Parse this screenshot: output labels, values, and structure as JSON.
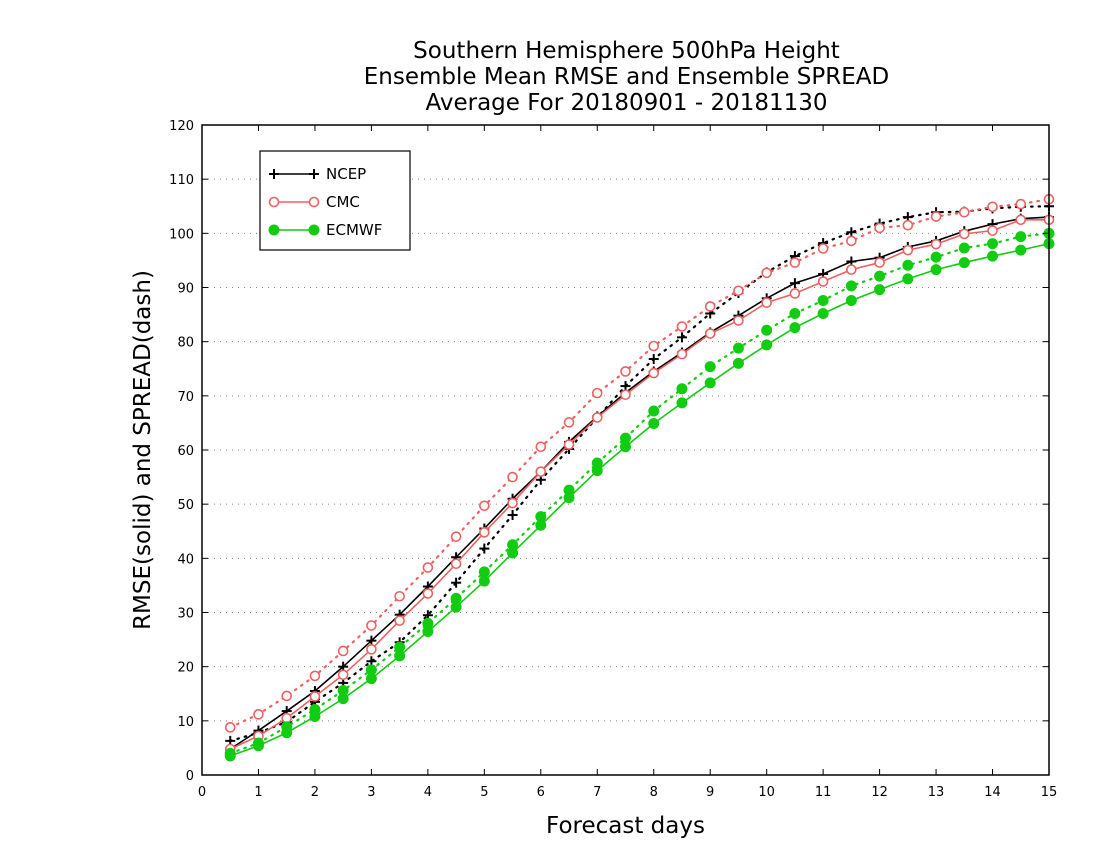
{
  "chart_data": {
    "type": "line",
    "title": [
      "Southern Hemisphere 500hPa Height",
      "Ensemble Mean RMSE and Ensemble SPREAD",
      "Average For 20180901 - 20181130"
    ],
    "xlabel": "Forecast days",
    "ylabel": "RMSE(solid) and SPREAD(dash)",
    "xlim": [
      0,
      15
    ],
    "ylim": [
      0,
      120
    ],
    "xticks": [
      0,
      1,
      2,
      3,
      4,
      5,
      6,
      7,
      8,
      9,
      10,
      11,
      12,
      13,
      14,
      15
    ],
    "yticks": [
      0,
      10,
      20,
      30,
      40,
      50,
      60,
      70,
      80,
      90,
      100,
      110,
      120
    ],
    "grid": true,
    "legend_position": "top-left",
    "series": [
      {
        "name": "NCEP",
        "color": "#000000",
        "marker": "plus",
        "x": [
          0.5,
          1.0,
          1.5,
          2.0,
          2.5,
          3.0,
          3.5,
          4.0,
          4.5,
          5.0,
          5.5,
          6.0,
          6.5,
          7.0,
          7.5,
          8.0,
          8.5,
          9.0,
          9.5,
          10.0,
          10.5,
          11.0,
          11.5,
          12.0,
          12.5,
          13.0,
          13.5,
          14.0,
          14.5,
          15.0
        ],
        "rmse": [
          4.8,
          8.2,
          11.8,
          15.5,
          20.0,
          24.8,
          29.6,
          34.8,
          40.2,
          45.5,
          51.0,
          56.0,
          61.5,
          66.2,
          70.6,
          74.5,
          78.0,
          81.7,
          84.8,
          88.0,
          90.8,
          92.5,
          94.8,
          95.5,
          97.5,
          98.6,
          100.4,
          101.7,
          102.7,
          103.0
        ],
        "spread": [
          6.3,
          7.8,
          9.8,
          13.5,
          17.0,
          21.0,
          24.5,
          29.5,
          35.5,
          41.8,
          48.0,
          54.5,
          60.2,
          66.0,
          71.8,
          76.8,
          80.8,
          85.2,
          89.0,
          92.8,
          95.8,
          98.2,
          100.2,
          101.8,
          103.0,
          103.9,
          104.0,
          104.6,
          104.9,
          105.0
        ]
      },
      {
        "name": "CMC",
        "color": "#f06060",
        "marker": "circle-open",
        "x": [
          0.5,
          1.0,
          1.5,
          2.0,
          2.5,
          3.0,
          3.5,
          4.0,
          4.5,
          5.0,
          5.5,
          6.0,
          6.5,
          7.0,
          7.5,
          8.0,
          8.5,
          9.0,
          9.5,
          10.0,
          10.5,
          11.0,
          11.5,
          12.0,
          12.5,
          13.0,
          13.5,
          14.0,
          14.5,
          15.0
        ],
        "rmse": [
          4.8,
          7.2,
          10.5,
          14.5,
          18.5,
          23.2,
          28.5,
          33.5,
          39.0,
          44.8,
          50.2,
          56.0,
          61.0,
          66.0,
          70.2,
          74.2,
          77.7,
          81.5,
          83.9,
          87.2,
          88.9,
          91.1,
          93.3,
          94.6,
          96.9,
          98.0,
          99.9,
          100.5,
          102.5,
          102.5
        ],
        "spread": [
          8.8,
          11.2,
          14.6,
          18.3,
          22.9,
          27.6,
          33.0,
          38.3,
          44.0,
          49.7,
          55.0,
          60.6,
          65.1,
          70.5,
          74.5,
          79.2,
          82.8,
          86.5,
          89.4,
          92.7,
          94.6,
          97.2,
          98.6,
          101.0,
          101.5,
          103.1,
          103.9,
          104.9,
          105.4,
          106.3
        ]
      },
      {
        "name": "ECMWF",
        "color": "#11cc11",
        "marker": "circle-filled",
        "x": [
          0.5,
          1.0,
          1.5,
          2.0,
          2.5,
          3.0,
          3.5,
          4.0,
          4.5,
          5.0,
          5.5,
          6.0,
          6.5,
          7.0,
          7.5,
          8.0,
          8.5,
          9.0,
          9.5,
          10.0,
          10.5,
          11.0,
          11.5,
          12.0,
          12.5,
          13.0,
          13.5,
          14.0,
          14.5,
          15.0
        ],
        "rmse": [
          3.5,
          5.4,
          7.8,
          10.8,
          14.1,
          17.8,
          22.0,
          26.5,
          31.0,
          35.8,
          41.0,
          46.1,
          51.2,
          56.2,
          60.6,
          64.9,
          68.7,
          72.4,
          76.0,
          79.4,
          82.6,
          85.2,
          87.6,
          89.6,
          91.6,
          93.3,
          94.6,
          95.8,
          96.9,
          98.1
        ],
        "spread": [
          4.0,
          5.9,
          8.9,
          12.1,
          15.6,
          19.4,
          23.6,
          28.0,
          32.6,
          37.5,
          42.5,
          47.7,
          52.6,
          57.6,
          62.2,
          67.2,
          71.3,
          75.4,
          78.8,
          82.1,
          85.2,
          87.6,
          90.3,
          92.1,
          94.1,
          95.6,
          97.3,
          98.1,
          99.4,
          100.0
        ]
      }
    ]
  }
}
